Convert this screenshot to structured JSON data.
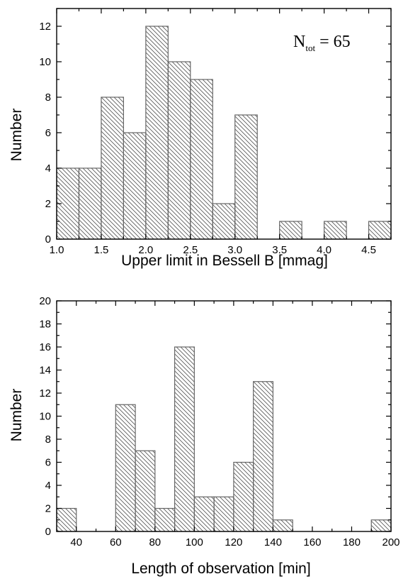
{
  "chart_data": [
    {
      "type": "bar",
      "xlabel": "Upper limit in Bessell B [mmag]",
      "ylabel": "Number",
      "xlim": [
        1.0,
        4.75
      ],
      "ylim": [
        0,
        13
      ],
      "bin_width": 0.25,
      "bins_start": [
        1.0,
        1.25,
        1.5,
        1.75,
        2.0,
        2.25,
        2.5,
        2.75,
        3.0,
        3.25,
        3.5,
        3.75,
        4.0,
        4.25,
        4.5
      ],
      "values": [
        4,
        4,
        8,
        6,
        12,
        10,
        9,
        2,
        7,
        0,
        1,
        0,
        1,
        0,
        1
      ],
      "x_ticks": [
        "1.0",
        "1.5",
        "2.0",
        "2.5",
        "3.0",
        "3.5",
        "4.0",
        "4.5"
      ],
      "x_tick_values": [
        1.0,
        1.5,
        2.0,
        2.5,
        3.0,
        3.5,
        4.0,
        4.5
      ],
      "y_ticks": [
        "0",
        "2",
        "4",
        "6",
        "8",
        "10",
        "12"
      ],
      "y_tick_values": [
        0,
        2,
        4,
        6,
        8,
        10,
        12
      ],
      "annotation": {
        "main": "N",
        "sub": "tot",
        "rest": " = 65"
      },
      "grid": false
    },
    {
      "type": "bar",
      "xlabel": "Length of observation [min]",
      "ylabel": "Number",
      "xlim": [
        30,
        200
      ],
      "ylim": [
        0,
        20
      ],
      "bin_width": 10,
      "bins_start": [
        30,
        40,
        50,
        60,
        70,
        80,
        90,
        100,
        110,
        120,
        130,
        140,
        150,
        160,
        170,
        180,
        190
      ],
      "values": [
        2,
        0,
        0,
        11,
        7,
        2,
        16,
        3,
        3,
        6,
        13,
        1,
        0,
        0,
        0,
        0,
        1
      ],
      "x_ticks": [
        "40",
        "60",
        "80",
        "100",
        "120",
        "140",
        "160",
        "180",
        "200"
      ],
      "x_tick_values": [
        40,
        60,
        80,
        100,
        120,
        140,
        160,
        180,
        200
      ],
      "y_ticks": [
        "0",
        "2",
        "4",
        "6",
        "8",
        "10",
        "12",
        "14",
        "16",
        "18",
        "20"
      ],
      "y_tick_values": [
        0,
        2,
        4,
        6,
        8,
        10,
        12,
        14,
        16,
        18,
        20
      ],
      "grid": false
    }
  ]
}
